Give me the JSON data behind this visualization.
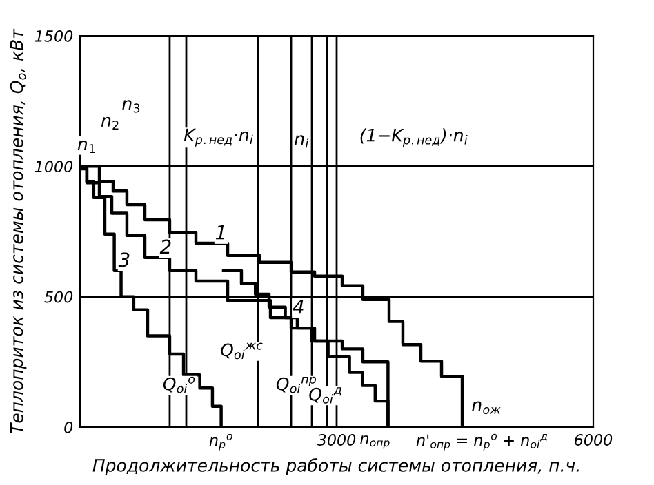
{
  "chart_data": {
    "type": "step",
    "xlabel": "Продолжительность работы системы отопления, п.ч.",
    "ylabel": "Теплоприток из системы отопления, Q$_{o}$, кВт",
    "xlim": [
      0,
      6000
    ],
    "ylim": [
      0,
      1500
    ],
    "xticks": [
      {
        "value": 0,
        "label": null
      },
      {
        "value": 1650,
        "label": "n$_{р}$$^{о}$"
      },
      3000,
      {
        "value": 3450,
        "label": "n$_{опр}$"
      },
      {
        "value": 4700,
        "label": "n'$_{опр}$ = n$_{р}$$^{о}$ + n$_{oi}$$^{д}$"
      },
      6000
    ],
    "yticks": [
      0,
      500,
      1000,
      1500
    ],
    "grid": "y",
    "series": [
      {
        "name": "1",
        "color": "#000000",
        "x": [
          0,
          226,
          387,
          548,
          758,
          1048,
          1355,
          1726,
          2097,
          2468,
          2742,
          3065,
          3306,
          3613,
          3774,
          3984,
          4226,
          4468
        ],
        "values": [
          1000,
          942,
          905,
          853,
          795,
          747,
          705,
          658,
          632,
          595,
          579,
          542,
          489,
          405,
          316,
          253,
          195,
          0
        ]
      },
      {
        "name": "2",
        "color": "#000000",
        "x": [
          0,
          80,
          226,
          371,
          548,
          758,
          1048,
          1355,
          1726,
          2226,
          2468,
          2742,
          3065,
          3306,
          3600
        ],
        "values": [
          1000,
          937,
          884,
          820,
          735,
          650,
          600,
          560,
          485,
          420,
          380,
          330,
          300,
          250,
          0
        ]
      },
      {
        "name": "3",
        "color": "#000000",
        "x": [
          0,
          80,
          160,
          290,
          400,
          480,
          628,
          790,
          1048,
          1210,
          1400,
          1548,
          1650
        ],
        "values": [
          990,
          940,
          880,
          740,
          600,
          500,
          450,
          350,
          280,
          200,
          150,
          80,
          0
        ]
      },
      {
        "name": "4",
        "color": "#000000",
        "x": [
          1677,
          1887,
          2050,
          2210,
          2400,
          2540,
          2710,
          2900,
          3150,
          3300,
          3450,
          3600
        ],
        "values": [
          600,
          550,
          510,
          460,
          420,
          380,
          330,
          270,
          210,
          160,
          100,
          0
        ]
      }
    ],
    "ref_lines": [
      {
        "axis": "x",
        "value": 1048
      },
      {
        "axis": "x",
        "value": 1242
      },
      {
        "axis": "x",
        "value": 2080
      },
      {
        "axis": "x",
        "value": 2468
      },
      {
        "axis": "x",
        "value": 2710
      },
      {
        "axis": "x",
        "value": 2887
      },
      {
        "axis": "x",
        "value": 3000
      }
    ],
    "annotations": [
      {
        "text": "n$_{1}$",
        "x": 80,
        "y": 1080
      },
      {
        "text": "n$_{2}$",
        "x": 355,
        "y": 1170
      },
      {
        "text": "n$_{3}$",
        "x": 600,
        "y": 1235
      },
      "K$_{р.нед}$·n$_{i}$",
      {
        "text": "n$_{i}$",
        "x": 2590,
        "y": 1100
      },
      "(1−K$_{р.нед}$)·n$_{i}$",
      {
        "text": "Q$_{oi}$$^{о}$",
        "x": 1160,
        "y": 160
      },
      {
        "text": "Q$_{oi}$$^{жс}$",
        "x": 1890,
        "y": 290
      },
      {
        "text": "Q$_{oi}$$^{пр}$",
        "x": 2530,
        "y": 160
      },
      {
        "text": "Q$_{oi}$$^{д}$",
        "x": 2870,
        "y": 120
      },
      {
        "text": "n$_{ож}$",
        "x": 4750,
        "y": 80
      }
    ]
  }
}
